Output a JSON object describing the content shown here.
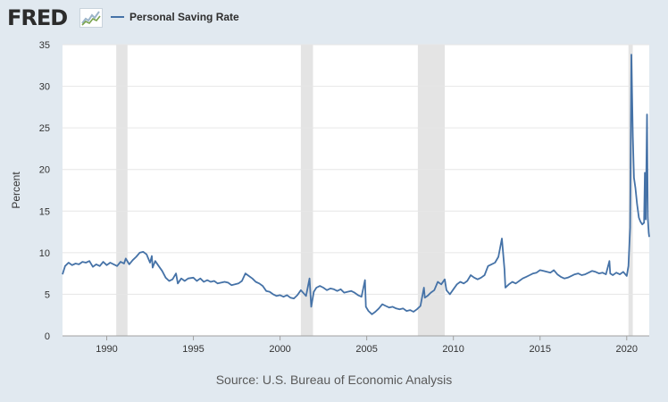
{
  "logo": {
    "text": "FRED",
    "graph_icon": "line-graph-icon"
  },
  "legend": {
    "label": "Personal Saving Rate",
    "color": "#4572a7"
  },
  "source": "Source: U.S. Bureau of Economic Analysis",
  "chart_data": {
    "type": "line",
    "title": "",
    "ylabel": "Percent",
    "xlabel": "",
    "xlim": [
      1987.45,
      2021.3
    ],
    "ylim": [
      0,
      35
    ],
    "yticks": [
      0,
      5,
      10,
      15,
      20,
      25,
      30,
      35
    ],
    "xticks": [
      1990,
      1995,
      2000,
      2005,
      2010,
      2015,
      2020
    ],
    "grid": "horizontal",
    "line_color": "#4572a7",
    "recessions": [
      [
        1990.55,
        1991.2
      ],
      [
        2001.2,
        2001.9
      ],
      [
        2007.95,
        2009.5
      ],
      [
        2020.1,
        2020.35
      ]
    ],
    "series": [
      {
        "name": "Personal Saving Rate",
        "x": [
          1987.45,
          1987.6,
          1987.8,
          1988.0,
          1988.2,
          1988.4,
          1988.6,
          1988.8,
          1989.0,
          1989.2,
          1989.4,
          1989.6,
          1989.8,
          1990.0,
          1990.2,
          1990.4,
          1990.6,
          1990.8,
          1991.0,
          1991.1,
          1991.3,
          1991.5,
          1991.7,
          1991.9,
          1992.1,
          1992.3,
          1992.5,
          1992.6,
          1992.65,
          1992.8,
          1993.0,
          1993.2,
          1993.4,
          1993.6,
          1993.8,
          1994.0,
          1994.1,
          1994.3,
          1994.5,
          1994.7,
          1995.0,
          1995.2,
          1995.4,
          1995.6,
          1995.8,
          1996.0,
          1996.2,
          1996.4,
          1996.6,
          1996.8,
          1997.0,
          1997.2,
          1997.4,
          1997.6,
          1997.8,
          1998.0,
          1998.2,
          1998.4,
          1998.6,
          1998.8,
          1999.0,
          1999.2,
          1999.4,
          1999.6,
          1999.8,
          2000.0,
          2000.2,
          2000.4,
          2000.6,
          2000.8,
          2001.0,
          2001.2,
          2001.5,
          2001.7,
          2001.8,
          2001.95,
          2002.1,
          2002.3,
          2002.5,
          2002.7,
          2002.9,
          2003.1,
          2003.3,
          2003.5,
          2003.7,
          2003.9,
          2004.1,
          2004.3,
          2004.5,
          2004.7,
          2004.9,
          2004.95,
          2005.1,
          2005.3,
          2005.5,
          2005.7,
          2005.9,
          2006.1,
          2006.3,
          2006.5,
          2006.7,
          2006.9,
          2007.1,
          2007.3,
          2007.5,
          2007.7,
          2007.9,
          2008.1,
          2008.3,
          2008.35,
          2008.5,
          2008.7,
          2008.9,
          2009.1,
          2009.3,
          2009.5,
          2009.6,
          2009.8,
          2010.0,
          2010.2,
          2010.4,
          2010.6,
          2010.8,
          2011.0,
          2011.2,
          2011.4,
          2011.6,
          2011.8,
          2012.0,
          2012.2,
          2012.4,
          2012.6,
          2012.8,
          2012.95,
          2013.0,
          2013.2,
          2013.4,
          2013.6,
          2013.8,
          2014.0,
          2014.2,
          2014.4,
          2014.6,
          2014.8,
          2015.0,
          2015.2,
          2015.4,
          2015.6,
          2015.8,
          2016.0,
          2016.2,
          2016.4,
          2016.6,
          2016.8,
          2017.0,
          2017.2,
          2017.4,
          2017.6,
          2017.8,
          2018.0,
          2018.2,
          2018.4,
          2018.6,
          2018.8,
          2019.0,
          2019.05,
          2019.2,
          2019.4,
          2019.6,
          2019.8,
          2020.0,
          2020.1,
          2020.2,
          2020.27,
          2020.35,
          2020.42,
          2020.5,
          2020.6,
          2020.7,
          2020.8,
          2020.9,
          2021.0,
          2021.05,
          2021.1,
          2021.17,
          2021.22,
          2021.27,
          2021.3
        ],
        "y": [
          7.4,
          8.4,
          8.8,
          8.5,
          8.7,
          8.6,
          8.9,
          8.8,
          9.0,
          8.3,
          8.6,
          8.4,
          8.9,
          8.5,
          8.8,
          8.6,
          8.4,
          8.9,
          8.7,
          9.3,
          8.6,
          9.1,
          9.5,
          10.0,
          10.1,
          9.8,
          8.8,
          9.6,
          8.2,
          9.0,
          8.4,
          7.8,
          7.0,
          6.6,
          6.8,
          7.5,
          6.3,
          6.9,
          6.6,
          6.9,
          7.0,
          6.6,
          6.9,
          6.5,
          6.7,
          6.5,
          6.6,
          6.3,
          6.4,
          6.5,
          6.4,
          6.1,
          6.2,
          6.3,
          6.6,
          7.5,
          7.2,
          6.9,
          6.5,
          6.3,
          6.0,
          5.4,
          5.3,
          5.0,
          4.8,
          4.9,
          4.7,
          4.9,
          4.6,
          4.5,
          4.9,
          5.5,
          4.8,
          6.9,
          3.5,
          5.3,
          5.8,
          6.0,
          5.8,
          5.5,
          5.7,
          5.6,
          5.4,
          5.6,
          5.2,
          5.3,
          5.4,
          5.2,
          4.9,
          4.7,
          6.7,
          3.5,
          3.0,
          2.6,
          2.9,
          3.3,
          3.8,
          3.6,
          3.4,
          3.5,
          3.3,
          3.2,
          3.3,
          3.0,
          3.1,
          2.9,
          3.2,
          3.6,
          5.8,
          4.6,
          4.8,
          5.2,
          5.5,
          6.5,
          6.2,
          6.8,
          5.5,
          5.0,
          5.6,
          6.2,
          6.5,
          6.3,
          6.6,
          7.3,
          7.0,
          6.8,
          7.0,
          7.3,
          8.4,
          8.6,
          8.8,
          9.5,
          11.7,
          8.0,
          5.8,
          6.2,
          6.5,
          6.3,
          6.6,
          6.9,
          7.1,
          7.3,
          7.5,
          7.6,
          7.9,
          7.8,
          7.7,
          7.6,
          7.9,
          7.4,
          7.1,
          6.9,
          7.0,
          7.2,
          7.4,
          7.5,
          7.3,
          7.4,
          7.6,
          7.8,
          7.7,
          7.5,
          7.6,
          7.4,
          9.0,
          7.5,
          7.3,
          7.6,
          7.4,
          7.7,
          7.2,
          8.4,
          13.0,
          33.8,
          24.0,
          19.0,
          17.8,
          15.8,
          14.2,
          13.7,
          13.4,
          13.6,
          19.6,
          14.0,
          26.6,
          14.2,
          12.4,
          11.9
        ]
      }
    ]
  }
}
